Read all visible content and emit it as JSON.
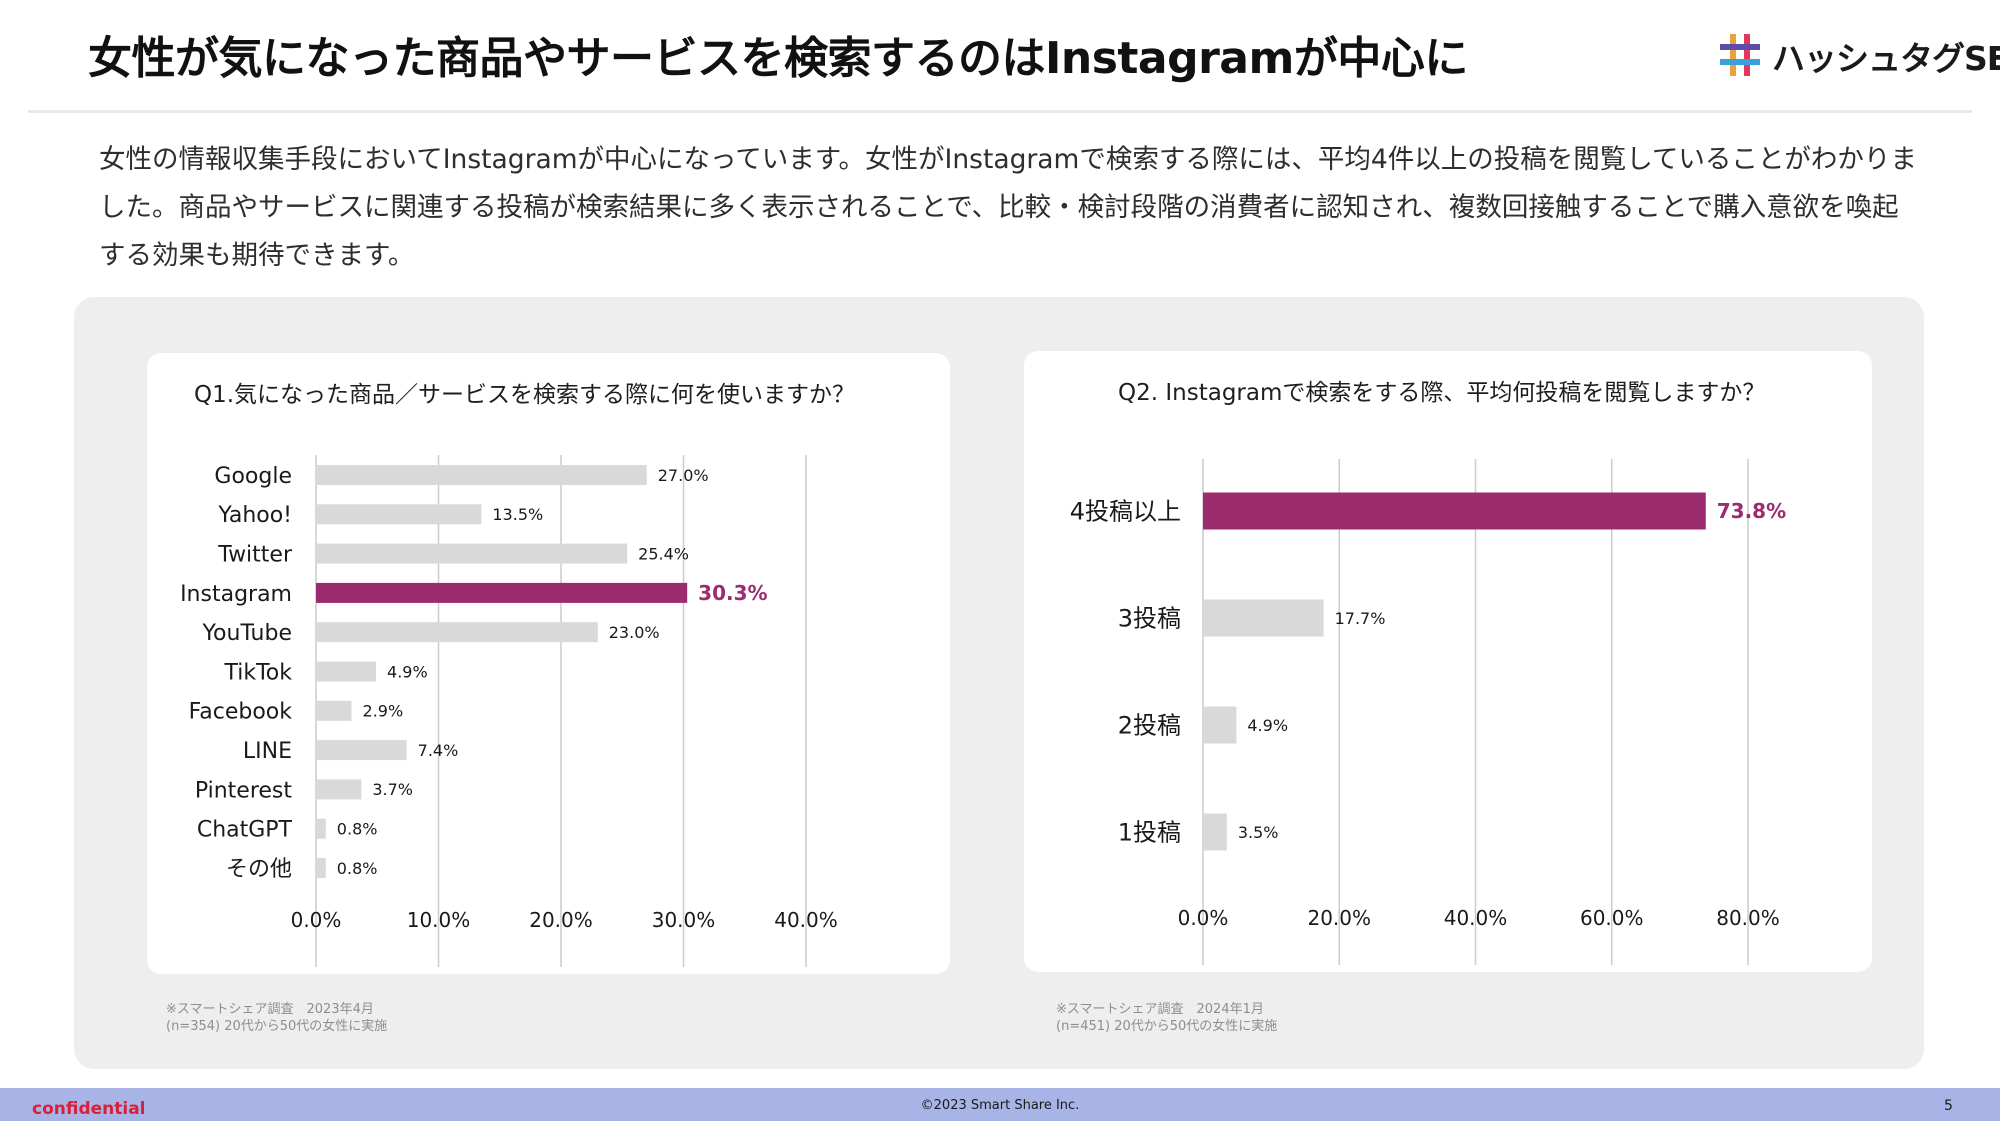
{
  "header": {
    "title": "女性が気になった商品やサービスを検索するのはInstagramが中心に",
    "logo_text": "ハッシュタグSEO"
  },
  "lead_text": "女性の情報収集手段においてInstagramが中心になっています。女性がInstagramで検索する際には、平均4件以上の投稿を閲覧していることがわかりました。商品やサービスに関連する投稿が検索結果に多く表示されることで、比較・検討段階の消費者に認知され、複数回接触することで購入意欲を喚起する効果も期待できます。",
  "colors": {
    "highlight": "#9b2c6e",
    "bar": "#d9d9d9",
    "grid": "#cccccc"
  },
  "chart_data": [
    {
      "type": "bar",
      "orientation": "horizontal",
      "title": "Q1.気になった商品／サービスを検索する際に何を使いますか？",
      "categories": [
        "Google",
        "Yahoo!",
        "Twitter",
        "Instagram",
        "YouTube",
        "TikTok",
        "Facebook",
        "LINE",
        "Pinterest",
        "ChatGPT",
        "その他"
      ],
      "values": [
        27.0,
        13.5,
        25.4,
        30.3,
        23.0,
        4.9,
        2.9,
        7.4,
        3.7,
        0.8,
        0.8
      ],
      "value_labels": [
        "27.0%",
        "13.5%",
        "25.4%",
        "30.3%",
        "23.0%",
        "4.9%",
        "2.9%",
        "7.4%",
        "3.7%",
        "0.8%",
        "0.8%"
      ],
      "highlight_index": 3,
      "xlim": [
        0,
        40
      ],
      "xticks": [
        0,
        10,
        20,
        30,
        40
      ],
      "xtick_labels": [
        "0.0%",
        "10.0%",
        "20.0%",
        "30.0%",
        "40.0%"
      ],
      "grid": true,
      "note": [
        "※スマートシェア調査　2023年4月",
        "(n=354) 20代から50代の女性に実施"
      ]
    },
    {
      "type": "bar",
      "orientation": "horizontal",
      "title": "Q2. Instagramで検索をする際、平均何投稿を閲覧しますか？",
      "categories": [
        "4投稿以上",
        "3投稿",
        "2投稿",
        "1投稿"
      ],
      "values": [
        73.8,
        17.7,
        4.9,
        3.5
      ],
      "value_labels": [
        "73.8%",
        "17.7%",
        "4.9%",
        "3.5%"
      ],
      "highlight_index": 0,
      "xlim": [
        0,
        80
      ],
      "xticks": [
        0,
        20,
        40,
        60,
        80
      ],
      "xtick_labels": [
        "0.0%",
        "20.0%",
        "40.0%",
        "60.0%",
        "80.0%"
      ],
      "grid": true,
      "note": [
        "※スマートシェア調査　2024年1月",
        "(n=451) 20代から50代の女性に実施"
      ]
    }
  ],
  "footer": {
    "confidential": "confidential",
    "copyright": "©2023 Smart Share Inc.",
    "page_number": "5"
  }
}
